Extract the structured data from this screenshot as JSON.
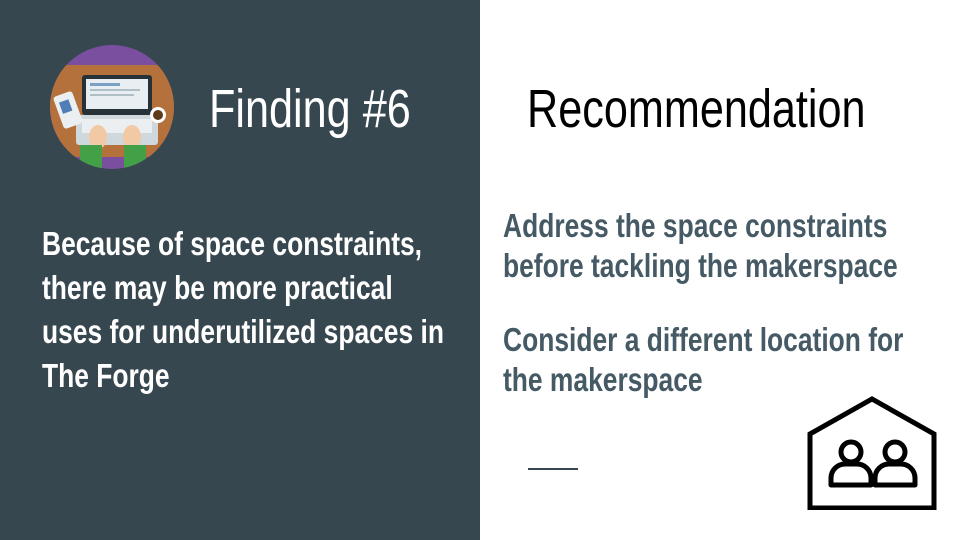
{
  "slide": {
    "finding": {
      "title": "Finding #6",
      "body": [
        "Because of space constraints,",
        "there may be more practical",
        "uses for underutilized spaces in",
        "The Forge"
      ]
    },
    "recommendation": {
      "title": "Recommendation",
      "items": [
        [
          "Address the space constraints",
          "before tackling the makerspace"
        ],
        [
          "Consider a different location for",
          "the makerspace"
        ]
      ]
    }
  },
  "colors": {
    "left_panel": "#37474f",
    "accent_purple": "#7b4fa0",
    "body_text_right": "#455a64"
  },
  "icons": {
    "finding_image": "laptop-desk-illustration",
    "recommendation_image": "house-people-icon"
  }
}
